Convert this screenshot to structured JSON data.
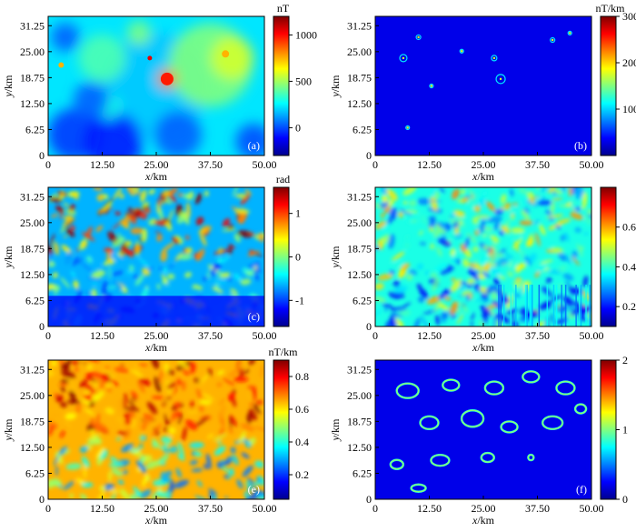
{
  "chart_data": [
    {
      "type": "heatmap",
      "panel": "(a)",
      "xlabel_var": "x",
      "xlabel_unit": "/km",
      "ylabel_var": "y",
      "ylabel_unit": "/km",
      "x_ticks": [
        "0",
        "12.50",
        "25.00",
        "37.50",
        "50.00"
      ],
      "y_ticks": [
        "0",
        "6.25",
        "12.50",
        "18.75",
        "25.00",
        "31.25"
      ],
      "xlim": [
        0,
        50
      ],
      "ylim": [
        0,
        33.5
      ],
      "colorbar": {
        "unit": "nT",
        "range": [
          -300,
          1200
        ],
        "ticks": [
          "1000",
          "500",
          "0"
        ],
        "tick_values": [
          1000,
          500,
          0
        ]
      },
      "pattern": "smooth"
    },
    {
      "type": "heatmap",
      "panel": "(b)",
      "xlabel_var": "x",
      "xlabel_unit": "/km",
      "ylabel_var": "y",
      "ylabel_unit": "/km",
      "x_ticks": [
        "0",
        "12.50",
        "25.00",
        "37.50",
        "50.00"
      ],
      "y_ticks": [
        "0",
        "6.25",
        "12.50",
        "18.75",
        "25.00",
        "31.25"
      ],
      "xlim": [
        0,
        50
      ],
      "ylim": [
        0,
        33.5
      ],
      "colorbar": {
        "unit": "nT/km",
        "range": [
          0,
          300
        ],
        "ticks": [
          "300",
          "200",
          "100"
        ],
        "tick_values": [
          300,
          200,
          100
        ]
      },
      "pattern": "sparse"
    },
    {
      "type": "heatmap",
      "panel": "(c)",
      "xlabel_var": "x",
      "xlabel_unit": "/km",
      "ylabel_var": "y",
      "ylabel_unit": "/km",
      "x_ticks": [
        "0",
        "12.50",
        "25.00",
        "37.50",
        "50.00"
      ],
      "y_ticks": [
        "0",
        "6.25",
        "12.50",
        "18.75",
        "25.00",
        "31.25"
      ],
      "xlim": [
        0,
        50
      ],
      "ylim": [
        0,
        33.5
      ],
      "colorbar": {
        "unit": "rad",
        "range": [
          -1.6,
          1.6
        ],
        "ticks": [
          "1",
          "0",
          "-1"
        ],
        "tick_values": [
          1,
          0,
          -1
        ]
      },
      "pattern": "tilt"
    },
    {
      "type": "heatmap",
      "panel": "",
      "xlabel_var": "x",
      "xlabel_unit": "/km",
      "ylabel_var": "y",
      "ylabel_unit": "/km",
      "x_ticks": [
        "0",
        "12.50",
        "25.00",
        "37.50",
        "50.00"
      ],
      "y_ticks": [
        "0",
        "6.25",
        "12.50",
        "18.75",
        "25.00",
        "31.25"
      ],
      "xlim": [
        0,
        50
      ],
      "ylim": [
        0,
        33.5
      ],
      "colorbar": {
        "unit": "",
        "range": [
          0.1,
          0.8
        ],
        "ticks": [
          "0.6",
          "0.4",
          "0.2"
        ],
        "tick_values": [
          0.6,
          0.4,
          0.2
        ]
      },
      "pattern": "busy"
    },
    {
      "type": "heatmap",
      "panel": "(e)",
      "xlabel_var": "x",
      "xlabel_unit": "/km",
      "ylabel_var": "y",
      "ylabel_unit": "/km",
      "x_ticks": [
        "0",
        "12.50",
        "25.00",
        "37.50",
        "50.00"
      ],
      "y_ticks": [
        "0",
        "6.25",
        "12.50",
        "18.75",
        "25.00",
        "31.25"
      ],
      "xlim": [
        0,
        50
      ],
      "ylim": [
        0,
        33.5
      ],
      "colorbar": {
        "unit": "nT/km",
        "range": [
          0.05,
          0.9
        ],
        "ticks": [
          "0.8",
          "0.6",
          "0.4",
          "0.2"
        ],
        "tick_values": [
          0.8,
          0.6,
          0.4,
          0.2
        ]
      },
      "pattern": "hot"
    },
    {
      "type": "heatmap",
      "panel": "(f)",
      "xlabel_var": "x",
      "xlabel_unit": "/km",
      "ylabel_var": "y",
      "ylabel_unit": "/km",
      "x_ticks": [
        "0",
        "12.50",
        "25.00",
        "37.50",
        "50.00"
      ],
      "y_ticks": [
        "0",
        "6.25",
        "12.50",
        "18.75",
        "25.00",
        "31.25"
      ],
      "xlim": [
        0,
        50
      ],
      "ylim": [
        0,
        33.5
      ],
      "colorbar": {
        "unit": "",
        "range": [
          0,
          2
        ],
        "ticks": [
          "2",
          "1",
          "0"
        ],
        "tick_values": [
          2,
          1,
          0
        ]
      },
      "pattern": "rings"
    }
  ],
  "colormap": [
    "#00008f",
    "#0000ff",
    "#0080ff",
    "#00ffff",
    "#80ff80",
    "#ffff00",
    "#ff8000",
    "#ff0000",
    "#800000"
  ],
  "background_color": "#ffffff"
}
